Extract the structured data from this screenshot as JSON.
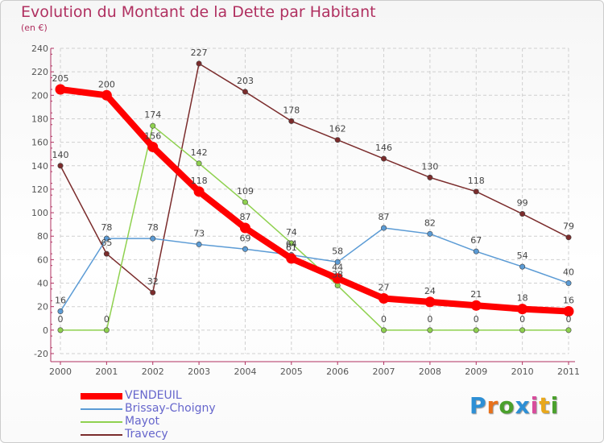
{
  "title": "Evolution du Montant de la Dette par Habitant",
  "subtitle": "(en €)",
  "logo": {
    "text": "Proxiti",
    "letter_colors": [
      "#2d8fd5",
      "#e8721c",
      "#4aa02c",
      "#2d8fd5",
      "#d84c9c",
      "#e8a81c",
      "#4aa02c"
    ]
  },
  "colors": {
    "axis": "#b03060",
    "grid": "#d0d0d0",
    "label": "#555555"
  },
  "chart_data": {
    "type": "line",
    "x": [
      "2000",
      "2001",
      "2002",
      "2003",
      "2004",
      "2005",
      "2006",
      "2007",
      "2008",
      "2009",
      "2010",
      "2011"
    ],
    "ylim": [
      -20,
      240
    ],
    "yticks": [
      "-20",
      "0",
      "20",
      "40",
      "60",
      "80",
      "100",
      "120",
      "140",
      "160",
      "180",
      "200",
      "220",
      "240"
    ],
    "grid": true,
    "legend_position": "bottom-left",
    "series": [
      {
        "name": "VENDEUIL",
        "color": "#ff0000",
        "values": [
          205,
          200,
          156,
          118,
          87,
          61,
          44,
          27,
          24,
          21,
          18,
          16
        ],
        "labels": [
          "205",
          "200",
          "156",
          "118",
          "87",
          "61",
          "44",
          "27",
          "24",
          "21",
          "18",
          "16"
        ]
      },
      {
        "name": "Brissay-Choigny",
        "color": "#5b9bd5",
        "values": [
          16,
          78,
          78,
          73,
          69,
          64,
          58,
          87,
          82,
          67,
          54,
          40
        ],
        "labels": [
          "16",
          "78",
          "78",
          "73",
          "69",
          "64",
          "58",
          "87",
          "82",
          "67",
          "54",
          "40"
        ]
      },
      {
        "name": "Mayot",
        "color": "#8fd14f",
        "values": [
          0,
          0,
          174,
          142,
          109,
          74,
          38,
          0,
          0,
          0,
          0,
          0
        ],
        "labels": [
          "0",
          "0",
          "174",
          "142",
          "109",
          "74",
          "38",
          "0",
          "0",
          "0",
          "0",
          "0"
        ]
      },
      {
        "name": "Travecy",
        "color": "#7b2c2c",
        "values": [
          140,
          65,
          32,
          227,
          203,
          178,
          162,
          146,
          130,
          118,
          99,
          79
        ],
        "labels": [
          "140",
          "65",
          "32",
          "227",
          "203",
          "178",
          "162",
          "146",
          "130",
          "118",
          "99",
          "79"
        ]
      }
    ]
  }
}
